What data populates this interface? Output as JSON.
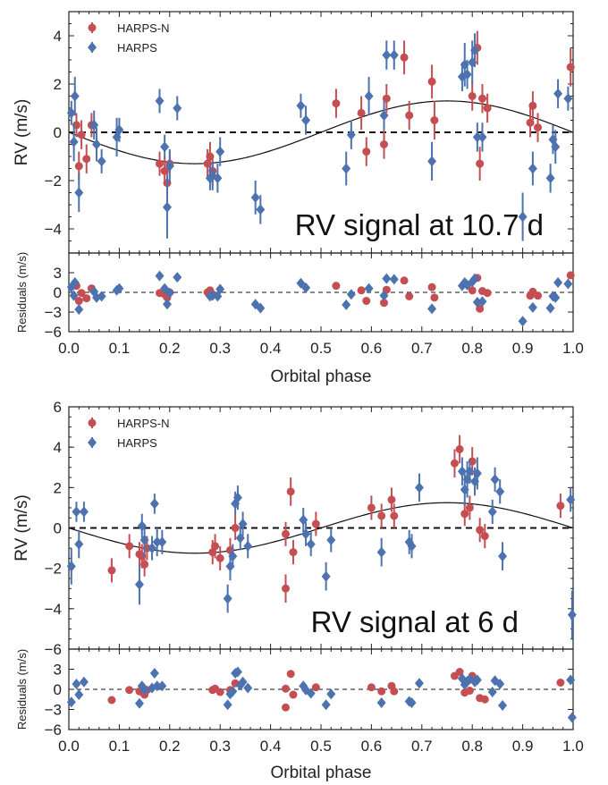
{
  "figure": {
    "background": "#ffffff"
  },
  "chart_data": [
    {
      "type": "scatter",
      "annotation": "RV signal at 10.7 d",
      "xlabel": "Orbital phase",
      "ylabel": "RV (m/s)",
      "residual_ylabel": "Residuals (m/s)",
      "xlim": [
        0.0,
        1.0
      ],
      "ylim": [
        -5,
        5
      ],
      "residual_ylim": [
        -6,
        6
      ],
      "xticks": [
        "0.0",
        "0.1",
        "0.2",
        "0.3",
        "0.4",
        "0.5",
        "0.6",
        "0.7",
        "0.8",
        "0.9",
        "1.0"
      ],
      "yticks": [
        "−4",
        "−2",
        "0",
        "2",
        "4"
      ],
      "residual_yticks": [
        "3",
        "0",
        "−3",
        "−6"
      ],
      "model": {
        "shape": "sinusoid",
        "amplitude": 1.3,
        "phase_of_max": 0.75,
        "color": "#111111"
      },
      "legend": {
        "location": "upper-left"
      },
      "series": [
        {
          "name": "HARPS-N",
          "color": "#c44e52",
          "marker": "circle",
          "points": [
            [
              0.015,
              0.3,
              0.5,
              1.0
            ],
            [
              0.02,
              -1.4,
              0.6,
              -1.3
            ],
            [
              0.025,
              -0.1,
              0.6,
              -0.1
            ],
            [
              0.035,
              -1.1,
              0.6,
              -0.9
            ],
            [
              0.045,
              0.3,
              0.5,
              0.6
            ],
            [
              0.18,
              -1.3,
              0.5,
              -0.1
            ],
            [
              0.19,
              -1.6,
              0.6,
              -0.3
            ],
            [
              0.195,
              -2.1,
              0.7,
              -0.8
            ],
            [
              0.2,
              -1.3,
              0.5,
              0.0
            ],
            [
              0.275,
              -1.3,
              0.6,
              0.0
            ],
            [
              0.28,
              -1.0,
              0.6,
              0.3
            ],
            [
              0.285,
              -1.6,
              0.6,
              -0.3
            ],
            [
              0.53,
              1.2,
              0.6,
              1.0
            ],
            [
              0.58,
              0.8,
              0.7,
              0.3
            ],
            [
              0.59,
              -0.8,
              0.6,
              -1.3
            ],
            [
              0.625,
              -0.5,
              0.6,
              -1.6
            ],
            [
              0.63,
              1.4,
              0.6,
              0.4
            ],
            [
              0.665,
              3.1,
              0.7,
              1.8
            ],
            [
              0.675,
              0.7,
              0.6,
              -0.6
            ],
            [
              0.72,
              2.1,
              0.7,
              0.8
            ],
            [
              0.725,
              0.5,
              0.8,
              -0.8
            ],
            [
              0.8,
              1.5,
              0.6,
              0.3
            ],
            [
              0.81,
              3.5,
              0.7,
              2.2
            ],
            [
              0.815,
              -1.3,
              0.7,
              -2.5
            ],
            [
              0.82,
              1.4,
              0.6,
              0.2
            ],
            [
              0.83,
              1.0,
              0.6,
              -0.1
            ],
            [
              0.915,
              0.4,
              0.6,
              -0.5
            ],
            [
              0.92,
              1.1,
              0.6,
              0.1
            ],
            [
              0.93,
              0.2,
              0.6,
              -0.5
            ],
            [
              0.995,
              2.7,
              0.8,
              2.6
            ]
          ]
        },
        {
          "name": "HARPS",
          "color": "#4c72b0",
          "marker": "diamond",
          "points": [
            [
              0.005,
              0.8,
              0.5,
              0.8
            ],
            [
              0.01,
              -0.4,
              0.8,
              -0.5
            ],
            [
              0.012,
              1.5,
              0.8,
              1.5
            ],
            [
              0.02,
              -2.5,
              0.8,
              -2.6
            ],
            [
              0.05,
              0.3,
              0.6,
              0.1
            ],
            [
              0.055,
              -0.5,
              0.7,
              -0.8
            ],
            [
              0.065,
              -1.2,
              0.5,
              -0.6
            ],
            [
              0.095,
              -0.2,
              0.8,
              0.3
            ],
            [
              0.1,
              0.1,
              0.5,
              0.6
            ],
            [
              0.18,
              1.3,
              0.5,
              2.5
            ],
            [
              0.19,
              -0.6,
              0.5,
              0.6
            ],
            [
              0.195,
              -3.1,
              1.3,
              -1.8
            ],
            [
              0.2,
              -1.4,
              0.7,
              -0.1
            ],
            [
              0.215,
              1.0,
              0.5,
              2.3
            ],
            [
              0.28,
              -1.9,
              0.5,
              -0.6
            ],
            [
              0.285,
              -1.8,
              0.6,
              -0.5
            ],
            [
              0.295,
              -1.9,
              0.6,
              -0.6
            ],
            [
              0.3,
              -0.8,
              0.6,
              0.5
            ],
            [
              0.37,
              -2.7,
              0.7,
              -1.8
            ],
            [
              0.38,
              -3.2,
              0.6,
              -2.4
            ],
            [
              0.46,
              1.1,
              0.5,
              1.4
            ],
            [
              0.47,
              0.5,
              0.6,
              0.7
            ],
            [
              0.55,
              -1.5,
              0.7,
              -1.9
            ],
            [
              0.56,
              -0.1,
              0.6,
              -0.3
            ],
            [
              0.595,
              1.5,
              0.8,
              0.6
            ],
            [
              0.625,
              0.7,
              0.6,
              -0.5
            ],
            [
              0.63,
              3.2,
              0.6,
              2.1
            ],
            [
              0.645,
              3.2,
              0.6,
              2.0
            ],
            [
              0.72,
              -1.2,
              0.8,
              -2.5
            ],
            [
              0.78,
              2.3,
              0.6,
              1.0
            ],
            [
              0.785,
              2.8,
              0.9,
              1.5
            ],
            [
              0.79,
              2.4,
              0.6,
              1.1
            ],
            [
              0.8,
              2.9,
              0.9,
              1.6
            ],
            [
              0.805,
              3.4,
              0.7,
              2.1
            ],
            [
              0.81,
              -0.2,
              0.6,
              -1.5
            ],
            [
              0.82,
              -0.2,
              0.6,
              -1.4
            ],
            [
              0.9,
              -3.5,
              1.0,
              -4.4
            ],
            [
              0.92,
              -1.5,
              0.7,
              -2.3
            ],
            [
              0.955,
              -1.9,
              0.6,
              -2.4
            ],
            [
              0.96,
              -0.3,
              0.6,
              -0.6
            ],
            [
              0.965,
              -0.6,
              0.7,
              -0.8
            ],
            [
              0.97,
              1.6,
              0.6,
              1.5
            ],
            [
              0.99,
              1.4,
              0.5,
              1.3
            ]
          ]
        }
      ]
    },
    {
      "type": "scatter",
      "annotation": "RV signal at 6 d",
      "xlabel": "Orbital phase",
      "ylabel": "RV (m/s)",
      "residual_ylabel": "Residuals (m/s)",
      "xlim": [
        0.0,
        1.0
      ],
      "ylim": [
        -6,
        6
      ],
      "residual_ylim": [
        -6,
        6
      ],
      "xticks": [
        "0.0",
        "0.1",
        "0.2",
        "0.3",
        "0.4",
        "0.5",
        "0.6",
        "0.7",
        "0.8",
        "0.9",
        "1.0"
      ],
      "yticks": [
        "−6",
        "−4",
        "−2",
        "0",
        "2",
        "4",
        "6"
      ],
      "residual_yticks": [
        "3",
        "0",
        "−3",
        "−6"
      ],
      "model": {
        "shape": "sinusoid",
        "amplitude": 1.25,
        "phase_of_max": 0.75,
        "color": "#111111"
      },
      "legend": {
        "location": "upper-left"
      },
      "series": [
        {
          "name": "HARPS-N",
          "color": "#c44e52",
          "marker": "circle",
          "points": [
            [
              0.085,
              -2.1,
              0.6,
              -1.6
            ],
            [
              0.12,
              -0.9,
              0.6,
              -0.1
            ],
            [
              0.14,
              -1.3,
              0.6,
              -0.3
            ],
            [
              0.145,
              -1.4,
              0.6,
              -0.4
            ],
            [
              0.15,
              -1.8,
              0.6,
              -0.8
            ],
            [
              0.155,
              -1.0,
              0.6,
              -0.1
            ],
            [
              0.285,
              -1.2,
              0.6,
              -0.1
            ],
            [
              0.29,
              -0.9,
              0.6,
              0.1
            ],
            [
              0.3,
              -1.5,
              0.6,
              -0.4
            ],
            [
              0.32,
              -1.1,
              0.6,
              -0.1
            ],
            [
              0.33,
              0.0,
              0.6,
              0.9
            ],
            [
              0.43,
              -3.0,
              0.7,
              -2.7
            ],
            [
              0.44,
              1.8,
              0.7,
              2.3
            ],
            [
              0.445,
              -1.2,
              0.6,
              -0.8
            ],
            [
              0.43,
              -0.3,
              0.6,
              0.1
            ],
            [
              0.49,
              0.2,
              0.6,
              0.3
            ],
            [
              0.6,
              1.0,
              0.6,
              0.3
            ],
            [
              0.62,
              0.6,
              0.6,
              -0.3
            ],
            [
              0.64,
              1.4,
              0.6,
              0.5
            ],
            [
              0.645,
              0.6,
              0.6,
              -0.3
            ],
            [
              0.765,
              3.2,
              0.7,
              2.0
            ],
            [
              0.775,
              3.9,
              0.7,
              2.6
            ],
            [
              0.785,
              0.7,
              0.6,
              -0.5
            ],
            [
              0.795,
              1.0,
              0.6,
              -0.2
            ],
            [
              0.8,
              3.3,
              0.7,
              2.0
            ],
            [
              0.815,
              -0.1,
              0.6,
              -1.3
            ],
            [
              0.825,
              -0.4,
              0.6,
              -1.5
            ],
            [
              0.975,
              1.1,
              0.6,
              1.0
            ]
          ]
        },
        {
          "name": "HARPS",
          "color": "#4c72b0",
          "marker": "diamond",
          "points": [
            [
              0.005,
              -1.9,
              0.9,
              -1.9
            ],
            [
              0.015,
              0.8,
              0.5,
              0.8
            ],
            [
              0.02,
              -0.8,
              0.7,
              -0.8
            ],
            [
              0.03,
              0.8,
              0.5,
              1.1
            ],
            [
              0.14,
              -2.8,
              1.0,
              -2.1
            ],
            [
              0.145,
              0.1,
              0.6,
              0.5
            ],
            [
              0.15,
              -0.6,
              0.8,
              -0.1
            ],
            [
              0.165,
              -1.0,
              0.6,
              0.2
            ],
            [
              0.17,
              1.2,
              0.5,
              2.4
            ],
            [
              0.175,
              -0.7,
              0.7,
              0.5
            ],
            [
              0.185,
              -0.7,
              0.6,
              0.5
            ],
            [
              0.315,
              -3.5,
              0.7,
              -2.3
            ],
            [
              0.32,
              -1.9,
              0.7,
              -0.7
            ],
            [
              0.325,
              -1.4,
              0.6,
              -0.3
            ],
            [
              0.33,
              1.2,
              0.6,
              2.4
            ],
            [
              0.335,
              1.5,
              0.6,
              2.6
            ],
            [
              0.34,
              -0.5,
              0.6,
              0.6
            ],
            [
              0.345,
              0.2,
              0.6,
              1.1
            ],
            [
              0.355,
              -0.9,
              0.6,
              0.2
            ],
            [
              0.465,
              0.4,
              0.6,
              0.5
            ],
            [
              0.47,
              -0.3,
              0.6,
              -0.1
            ],
            [
              0.48,
              -0.8,
              0.6,
              -0.6
            ],
            [
              0.51,
              -2.4,
              0.7,
              -2.3
            ],
            [
              0.52,
              -0.6,
              0.6,
              -0.7
            ],
            [
              0.62,
              -1.2,
              0.7,
              -2.0
            ],
            [
              0.675,
              -0.7,
              0.6,
              -1.8
            ],
            [
              0.68,
              -0.9,
              0.6,
              -2.0
            ],
            [
              0.695,
              2.0,
              0.7,
              0.9
            ],
            [
              0.78,
              2.8,
              0.7,
              1.6
            ],
            [
              0.785,
              1.9,
              0.8,
              0.7
            ],
            [
              0.79,
              2.4,
              0.9,
              1.2
            ],
            [
              0.795,
              2.8,
              0.6,
              1.5
            ],
            [
              0.805,
              2.3,
              0.7,
              1.1
            ],
            [
              0.81,
              2.7,
              0.8,
              1.4
            ],
            [
              0.84,
              0.8,
              0.6,
              -0.4
            ],
            [
              0.845,
              2.4,
              0.6,
              1.3
            ],
            [
              0.855,
              1.8,
              0.6,
              0.8
            ],
            [
              0.86,
              -1.4,
              0.7,
              -2.4
            ],
            [
              0.995,
              1.4,
              0.6,
              1.4
            ],
            [
              0.998,
              -4.3,
              1.2,
              -4.2
            ]
          ]
        }
      ]
    }
  ]
}
